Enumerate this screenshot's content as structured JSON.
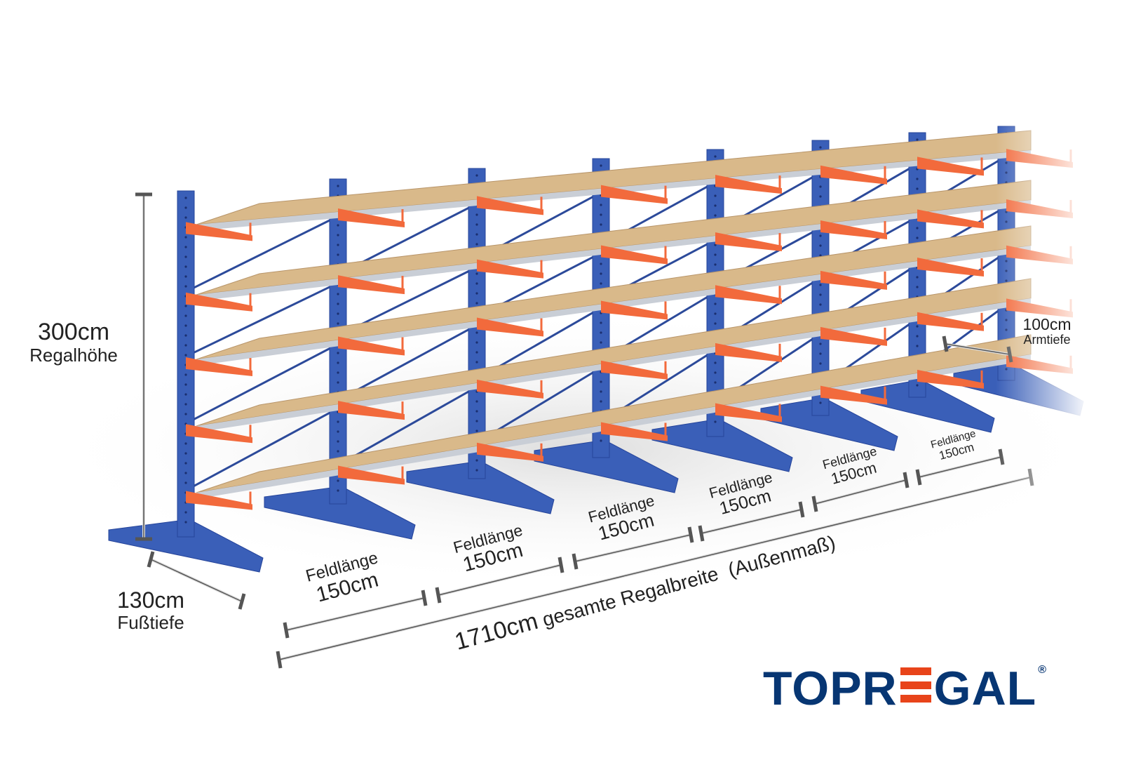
{
  "dimensions": {
    "height": {
      "value": "300cm",
      "label": "Regalhöhe"
    },
    "foot_depth": {
      "value": "130cm",
      "label": "Fußtiefe"
    },
    "arm_depth": {
      "value": "100cm",
      "label": "Armtiefe"
    },
    "total_width": {
      "value": "1710cm",
      "label": "gesamte Regalbreite",
      "note": "(Außenmaß)"
    },
    "bays": [
      {
        "label": "Feldlänge",
        "value": "150cm"
      },
      {
        "label": "Feldlänge",
        "value": "150cm"
      },
      {
        "label": "Feldlänge",
        "value": "150cm"
      },
      {
        "label": "Feldlänge",
        "value": "150cm"
      },
      {
        "label": "Feldlänge",
        "value": "150cm"
      },
      {
        "label": "Feldlänge",
        "value": "150cm"
      }
    ]
  },
  "rack": {
    "columns_visible": 8,
    "levels": 5
  },
  "colors": {
    "column": "#3a5fb8",
    "arm": "#f26a3c",
    "board": "#d9b98a",
    "logo_blue": "#073673",
    "logo_orange": "#e8441a"
  },
  "logo": {
    "text_left": "TOPR",
    "text_right": "GAL",
    "mark": "®"
  }
}
